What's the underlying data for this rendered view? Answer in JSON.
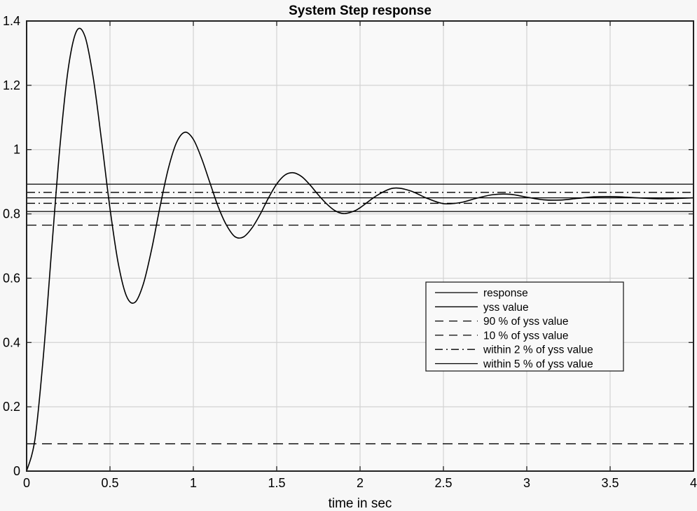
{
  "chart_data": {
    "type": "line",
    "title": "System Step response",
    "xlabel": "time in sec",
    "ylabel": "",
    "xlim": [
      0,
      4
    ],
    "ylim": [
      0,
      1.4
    ],
    "xticks": [
      0,
      0.5,
      1,
      1.5,
      2,
      2.5,
      3,
      3.5,
      4
    ],
    "xtick_labels": [
      "0",
      "0.5",
      "1",
      "1.5",
      "2",
      "2.5",
      "3",
      "3.5",
      "4"
    ],
    "yticks": [
      0,
      0.2,
      0.4,
      0.6,
      0.8,
      1,
      1.2,
      1.4
    ],
    "ytick_labels": [
      "0",
      "0.2",
      "0.4",
      "0.6",
      "0.8",
      "1",
      "1.2",
      "1.4"
    ],
    "grid": true,
    "legend_position": "lower right (inside, approx x=2.4..3.6, y=0.31..0.59)",
    "series": [
      {
        "name": "response",
        "style": "solid",
        "x": [
          0,
          0.05,
          0.1,
          0.15,
          0.2,
          0.25,
          0.3,
          0.35,
          0.4,
          0.45,
          0.5,
          0.55,
          0.6,
          0.65,
          0.7,
          0.75,
          0.8,
          0.85,
          0.9,
          0.95,
          1.0,
          1.05,
          1.1,
          1.15,
          1.2,
          1.25,
          1.3,
          1.35,
          1.4,
          1.45,
          1.5,
          1.55,
          1.6,
          1.65,
          1.7,
          1.75,
          1.8,
          1.85,
          1.9,
          1.95,
          2.0,
          2.1,
          2.2,
          2.3,
          2.4,
          2.5,
          2.6,
          2.7,
          2.8,
          2.9,
          3.0,
          3.1,
          3.2,
          3.3,
          3.4,
          3.5,
          3.6,
          3.7,
          3.8,
          3.9,
          4.0
        ],
        "values": [
          0,
          0.099,
          0.355,
          0.688,
          1.011,
          1.253,
          1.369,
          1.352,
          1.222,
          1.026,
          0.817,
          0.645,
          0.543,
          0.525,
          0.582,
          0.69,
          0.822,
          0.941,
          1.023,
          1.054,
          1.032,
          0.972,
          0.896,
          0.821,
          0.764,
          0.729,
          0.728,
          0.755,
          0.798,
          0.849,
          0.893,
          0.921,
          0.928,
          0.916,
          0.89,
          0.859,
          0.831,
          0.81,
          0.801,
          0.806,
          0.819,
          0.857,
          0.88,
          0.872,
          0.849,
          0.832,
          0.835,
          0.849,
          0.86,
          0.861,
          0.852,
          0.844,
          0.843,
          0.848,
          0.853,
          0.854,
          0.852,
          0.849,
          0.847,
          0.848,
          0.85
        ]
      },
      {
        "name": "yss value",
        "style": "solid",
        "y": 0.85
      },
      {
        "name": "90 % of yss value",
        "style": "dashed",
        "y": 0.765
      },
      {
        "name": "10 % of yss value",
        "style": "dashed",
        "y": 0.085
      },
      {
        "name": "within 2 % of yss value",
        "style": "dashdot",
        "y_upper": 0.867,
        "y_lower": 0.833
      },
      {
        "name": "within 5 % of yss value",
        "style": "solid",
        "y_upper": 0.8925,
        "y_lower": 0.8075
      }
    ],
    "annotations": {
      "peak": {
        "t": 0.32,
        "y": 1.378
      },
      "second_peak": {
        "t": 0.95,
        "y": 1.054
      },
      "first_trough": {
        "t": 0.63,
        "y": 0.525
      }
    }
  },
  "legend": {
    "items": [
      {
        "label": "response",
        "style": "solid"
      },
      {
        "label": "yss value",
        "style": "solid"
      },
      {
        "label": "90 % of yss value",
        "style": "dashed"
      },
      {
        "label": "10 % of yss value",
        "style": "dashed"
      },
      {
        "label": "within 2 % of yss value",
        "style": "dashdot"
      },
      {
        "label": "within 5 % of yss value",
        "style": "solid"
      }
    ]
  },
  "colors": {
    "background": "#f7f7f7",
    "plot_background": "#f9f9f9",
    "grid": "#d3d3d3",
    "line": "#000000",
    "axis": "#222222"
  }
}
